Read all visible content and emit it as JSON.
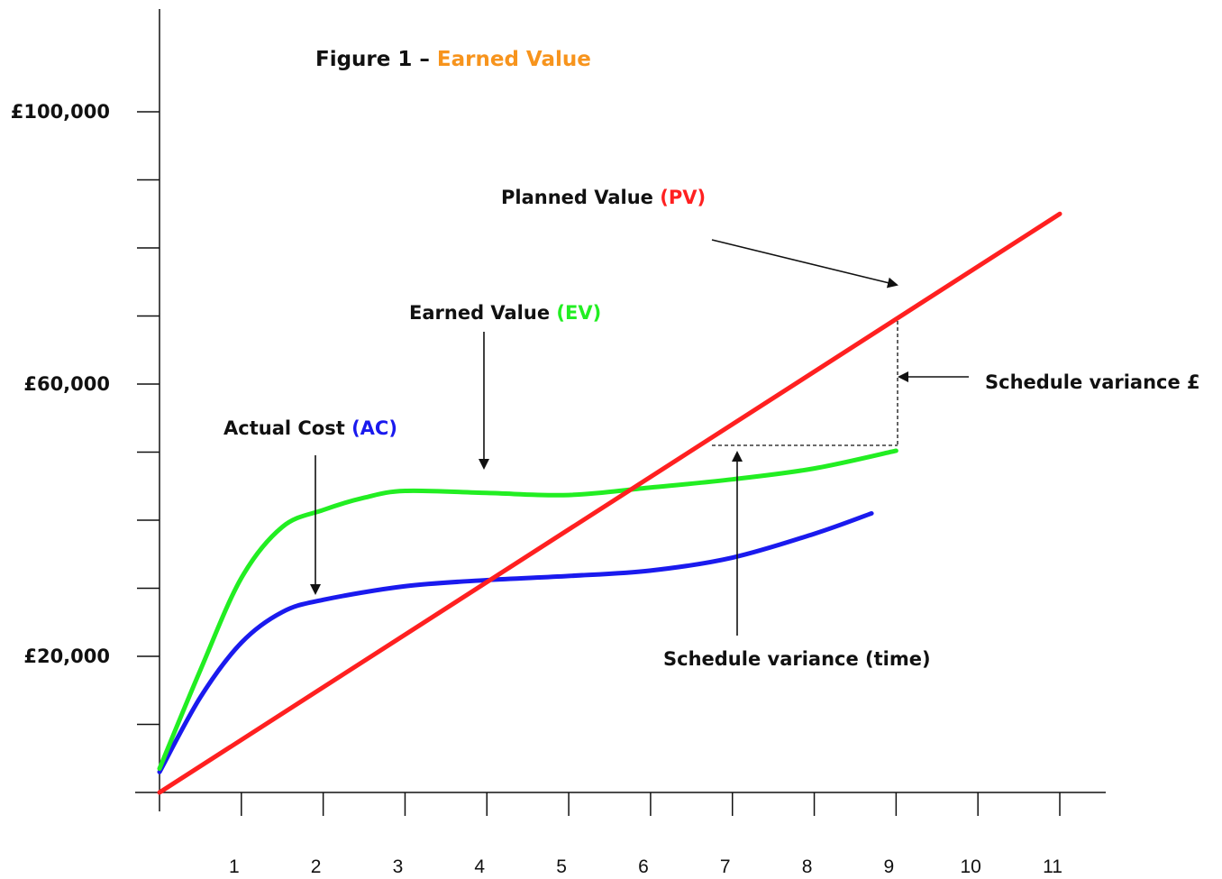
{
  "chart_data": {
    "type": "line",
    "title": {
      "prefix": "Figure 1 – ",
      "highlight": "Earned Value",
      "highlight_color": "#f7941d"
    },
    "x": [
      0,
      1,
      2,
      3,
      4,
      5,
      6,
      7,
      8,
      9,
      10,
      11
    ],
    "x_tick_labels": [
      "1",
      "2",
      "3",
      "4",
      "5",
      "6",
      "7",
      "8",
      "9",
      "10",
      "11"
    ],
    "y_tick_labels": [
      {
        "value": 20000,
        "label": "£20,000"
      },
      {
        "value": 60000,
        "label": "£60,000"
      },
      {
        "value": 100000,
        "label": "£100,000"
      }
    ],
    "y_minor_ticks": [
      0,
      10000,
      20000,
      30000,
      40000,
      50000,
      60000,
      70000,
      80000,
      90000,
      100000
    ],
    "xlim": [
      0,
      11
    ],
    "ylim": [
      0,
      100000
    ],
    "grid": false,
    "series": [
      {
        "name": "Planned Value",
        "abbr": "(PV)",
        "color": "#ff2020",
        "x": [
          0,
          11
        ],
        "y": [
          0,
          85000
        ]
      },
      {
        "name": "Earned Value",
        "abbr": "(EV)",
        "color": "#22ee22",
        "x": [
          0,
          0.5,
          1,
          1.5,
          2,
          2.5,
          3,
          4,
          5,
          6,
          7,
          8,
          9
        ],
        "y": [
          3500,
          18000,
          31500,
          39000,
          41500,
          43300,
          44300,
          44000,
          43700,
          44800,
          46000,
          47600,
          50200
        ]
      },
      {
        "name": "Actual Cost",
        "abbr": "(AC)",
        "color": "#1a1aee",
        "x": [
          0,
          0.5,
          1,
          1.5,
          2,
          3,
          4,
          5,
          6,
          7,
          8,
          8.7
        ],
        "y": [
          3000,
          14000,
          22000,
          26500,
          28300,
          30300,
          31200,
          31800,
          32600,
          34500,
          38000,
          41000
        ]
      }
    ],
    "annotations": [
      {
        "id": "pv",
        "text": "Planned Value ",
        "abbr": "(PV)",
        "color": "#ff2020"
      },
      {
        "id": "ev",
        "text": "Earned Value ",
        "abbr": "(EV)",
        "color": "#22ee22"
      },
      {
        "id": "ac",
        "text": "Actual Cost ",
        "abbr": "(AC)",
        "color": "#1a1aee"
      },
      {
        "id": "sv_money",
        "text": "Schedule variance £"
      },
      {
        "id": "sv_time",
        "text": "Schedule variance (time)"
      }
    ]
  }
}
